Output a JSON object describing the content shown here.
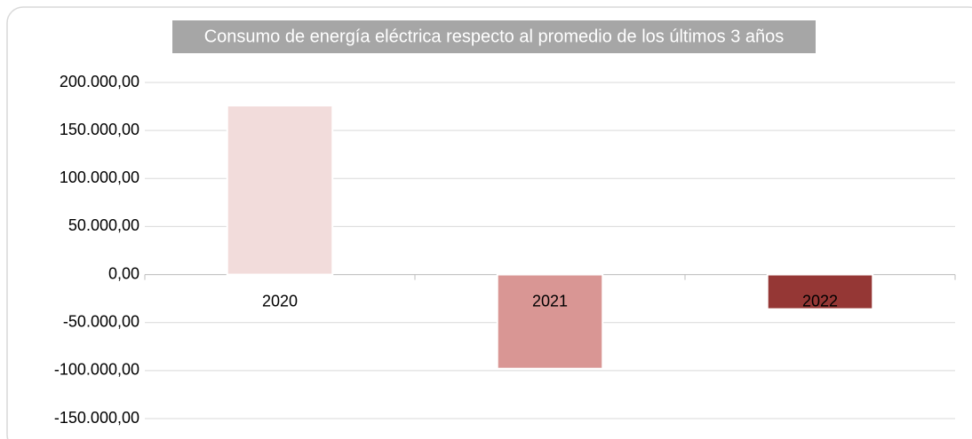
{
  "chart_data": {
    "type": "bar",
    "title": "Consumo de energía eléctrica respecto al promedio de los últimos 3 años",
    "categories": [
      "2020",
      "2021",
      "2022"
    ],
    "values": [
      176000,
      -98000,
      -36000
    ],
    "colors": [
      "#f2dcdb",
      "#d99694",
      "#953735"
    ],
    "ylim": [
      -150000,
      200000
    ],
    "yticks": [
      {
        "value": -150000,
        "label": "-150.000,00"
      },
      {
        "value": -100000,
        "label": "-100.000,00"
      },
      {
        "value": -50000,
        "label": "-50.000,00"
      },
      {
        "value": 0,
        "label": "0,00"
      },
      {
        "value": 50000,
        "label": "50.000,00"
      },
      {
        "value": 100000,
        "label": "100.000,00"
      },
      {
        "value": 150000,
        "label": "150.000,00"
      },
      {
        "value": 200000,
        "label": "200.000,00"
      }
    ],
    "grid": true
  }
}
